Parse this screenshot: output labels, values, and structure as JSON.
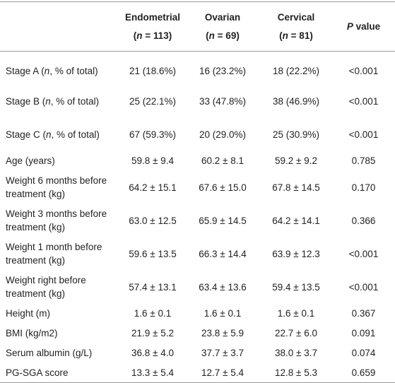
{
  "table": {
    "header": [
      {
        "name": [
          {
            "text": "Endometrial"
          }
        ],
        "count": [
          {
            "text": "("
          },
          {
            "text": "n",
            "italic": true
          },
          {
            "text": " = 113)"
          }
        ]
      },
      {
        "name": [
          {
            "text": "Ovarian"
          }
        ],
        "count": [
          {
            "text": "("
          },
          {
            "text": "n",
            "italic": true
          },
          {
            "text": " = 69)"
          }
        ]
      },
      {
        "name": [
          {
            "text": "Cervical"
          }
        ],
        "count": [
          {
            "text": "("
          },
          {
            "text": "n",
            "italic": true
          },
          {
            "text": " = 81)"
          }
        ]
      },
      {
        "name": [
          {
            "text": "P",
            "italic": true
          },
          {
            "text": " value"
          }
        ]
      }
    ],
    "rows": [
      {
        "label": [
          {
            "text": "Stage A ("
          },
          {
            "text": "n",
            "italic": true
          },
          {
            "text": ", % of total)"
          }
        ],
        "cells": [
          "21 (18.6%)",
          "16 (23.2%)",
          "18 (22.2%)",
          "<0.001"
        ]
      },
      {
        "label": [
          {
            "text": "Stage B ("
          },
          {
            "text": "n",
            "italic": true
          },
          {
            "text": ", % of total)"
          }
        ],
        "cells": [
          "25 (22.1%)",
          "33 (47.8%)",
          "38 (46.9%)",
          "<0.001"
        ]
      },
      {
        "label": [
          {
            "text": "Stage C ("
          },
          {
            "text": "n",
            "italic": true
          },
          {
            "text": ", % of total)"
          }
        ],
        "cells": [
          "67 (59.3%)",
          "20 (29.0%)",
          "25 (30.9%)",
          "<0.001"
        ]
      },
      {
        "label": [
          {
            "text": "Age (years)"
          }
        ],
        "cells": [
          "59.8 ± 9.4",
          "60.2 ± 8.1",
          "59.2 ± 9.2",
          "0.785"
        ]
      },
      {
        "label": [
          {
            "text": "Weight 6 months before treatment (kg)"
          }
        ],
        "cells": [
          "64.2 ± 15.1",
          "67.6 ± 15.0",
          "67.8 ± 14.5",
          "0.170"
        ]
      },
      {
        "label": [
          {
            "text": "Weight 3 months before treatment (kg)"
          }
        ],
        "cells": [
          "63.0 ± 12.5",
          "65.9 ± 14.5",
          "64.2 ± 14.1",
          "0.366"
        ]
      },
      {
        "label": [
          {
            "text": "Weight 1 month before treatment (kg)"
          }
        ],
        "cells": [
          "59.6 ± 13.5",
          "66.3 ± 14.4",
          "63.9 ± 12.3",
          "<0.001"
        ]
      },
      {
        "label": [
          {
            "text": "Weight right before treatment (kg)"
          }
        ],
        "cells": [
          "57.4 ± 13.1",
          "63.4 ± 13.6",
          "59.4 ± 13.5",
          "<0.001"
        ]
      },
      {
        "label": [
          {
            "text": "Height (m)"
          }
        ],
        "cells": [
          "1.6 ± 0.1",
          "1.6 ± 0.1",
          "1.6 ± 0.1",
          "0.367"
        ]
      },
      {
        "label": [
          {
            "text": "BMI (kg/m2)"
          }
        ],
        "cells": [
          "21.9 ± 5.2",
          "23.8 ± 5.9",
          "22.7 ± 6.0",
          "0.091"
        ]
      },
      {
        "label": [
          {
            "text": "Serum albumin (g/L)"
          }
        ],
        "cells": [
          "36.8 ± 4.0",
          "37.7 ± 3.7",
          "38.0 ± 3.7",
          "0.074"
        ]
      },
      {
        "label": [
          {
            "text": "PG-SGA score"
          }
        ],
        "cells": [
          "13.3 ± 5.4",
          "12.7 ± 5.4",
          "12.8 ± 5.3",
          "0.659"
        ]
      }
    ]
  }
}
